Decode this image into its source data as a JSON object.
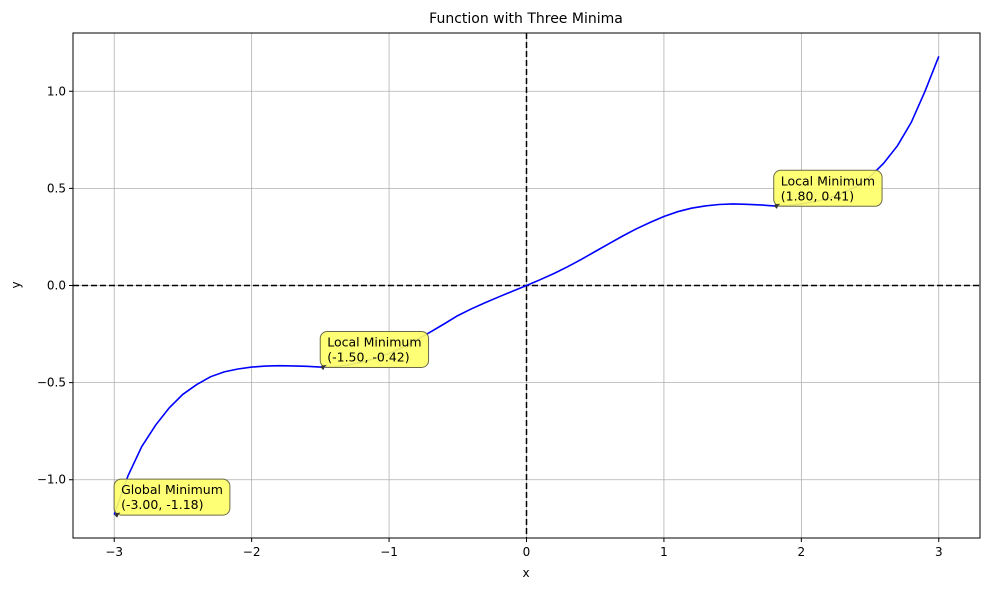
{
  "chart_data": {
    "type": "line",
    "title": "Function with Three Minima",
    "xlabel": "x",
    "ylabel": "y",
    "xlim": [
      -3.3,
      3.3
    ],
    "ylim": [
      -1.3,
      1.3
    ],
    "xticks": [
      -3,
      -2,
      -1,
      0,
      1,
      2,
      3
    ],
    "xtick_labels": [
      "−3",
      "−2",
      "−1",
      "0",
      "1",
      "2",
      "3"
    ],
    "yticks": [
      -1.0,
      -0.5,
      0.0,
      0.5,
      1.0
    ],
    "ytick_labels": [
      "−1.0",
      "−0.5",
      "0.0",
      "0.5",
      "1.0"
    ],
    "grid": true,
    "reference_lines": {
      "x": 0,
      "y": 0,
      "color": "#000000",
      "style": "dashed"
    },
    "series": [
      {
        "color": "#0000ff",
        "points": [
          [
            -3.0,
            -1.18
          ],
          [
            -2.9,
            -0.98
          ],
          [
            -2.8,
            -0.83
          ],
          [
            -2.7,
            -0.72
          ],
          [
            -2.6,
            -0.63
          ],
          [
            -2.5,
            -0.56
          ],
          [
            -2.4,
            -0.51
          ],
          [
            -2.3,
            -0.47
          ],
          [
            -2.2,
            -0.445
          ],
          [
            -2.1,
            -0.43
          ],
          [
            -2.0,
            -0.42
          ],
          [
            -1.9,
            -0.415
          ],
          [
            -1.8,
            -0.413
          ],
          [
            -1.7,
            -0.414
          ],
          [
            -1.6,
            -0.416
          ],
          [
            -1.5,
            -0.42
          ],
          [
            -1.4,
            -0.418
          ],
          [
            -1.3,
            -0.41
          ],
          [
            -1.2,
            -0.395
          ],
          [
            -1.1,
            -0.375
          ],
          [
            -1.0,
            -0.35
          ],
          [
            -0.9,
            -0.318
          ],
          [
            -0.8,
            -0.28
          ],
          [
            -0.7,
            -0.24
          ],
          [
            -0.6,
            -0.198
          ],
          [
            -0.5,
            -0.155
          ],
          [
            -0.4,
            -0.12
          ],
          [
            -0.3,
            -0.088
          ],
          [
            -0.2,
            -0.058
          ],
          [
            -0.1,
            -0.029
          ],
          [
            0.0,
            0.0
          ],
          [
            0.1,
            0.03
          ],
          [
            0.2,
            0.062
          ],
          [
            0.3,
            0.097
          ],
          [
            0.4,
            0.135
          ],
          [
            0.5,
            0.175
          ],
          [
            0.6,
            0.215
          ],
          [
            0.7,
            0.255
          ],
          [
            0.8,
            0.292
          ],
          [
            0.9,
            0.325
          ],
          [
            1.0,
            0.355
          ],
          [
            1.1,
            0.38
          ],
          [
            1.2,
            0.398
          ],
          [
            1.3,
            0.41
          ],
          [
            1.4,
            0.417
          ],
          [
            1.5,
            0.42
          ],
          [
            1.6,
            0.418
          ],
          [
            1.7,
            0.415
          ],
          [
            1.8,
            0.41
          ],
          [
            1.9,
            0.412
          ],
          [
            2.0,
            0.42
          ],
          [
            2.1,
            0.432
          ],
          [
            2.2,
            0.45
          ],
          [
            2.3,
            0.475
          ],
          [
            2.4,
            0.51
          ],
          [
            2.5,
            0.56
          ],
          [
            2.6,
            0.63
          ],
          [
            2.7,
            0.72
          ],
          [
            2.8,
            0.84
          ],
          [
            2.9,
            1.0
          ],
          [
            3.0,
            1.18
          ]
        ]
      }
    ],
    "annotations": [
      {
        "line1": "Global Minimum",
        "line2": "(-3.00, -1.18)",
        "x": -3.0,
        "y": -1.18,
        "text_x": -2.95,
        "text_y": -1.11
      },
      {
        "line1": "Local Minimum",
        "line2": "(-1.50, -0.42)",
        "x": -1.5,
        "y": -0.42,
        "text_x": -1.45,
        "text_y": -0.35
      },
      {
        "line1": "Local Minimum",
        "line2": "(1.80, 0.41)",
        "x": 1.8,
        "y": 0.41,
        "text_x": 1.85,
        "text_y": 0.48
      }
    ],
    "annotation_style": {
      "box_color": "#ffff66",
      "border_color": "#6b6b4a"
    }
  }
}
